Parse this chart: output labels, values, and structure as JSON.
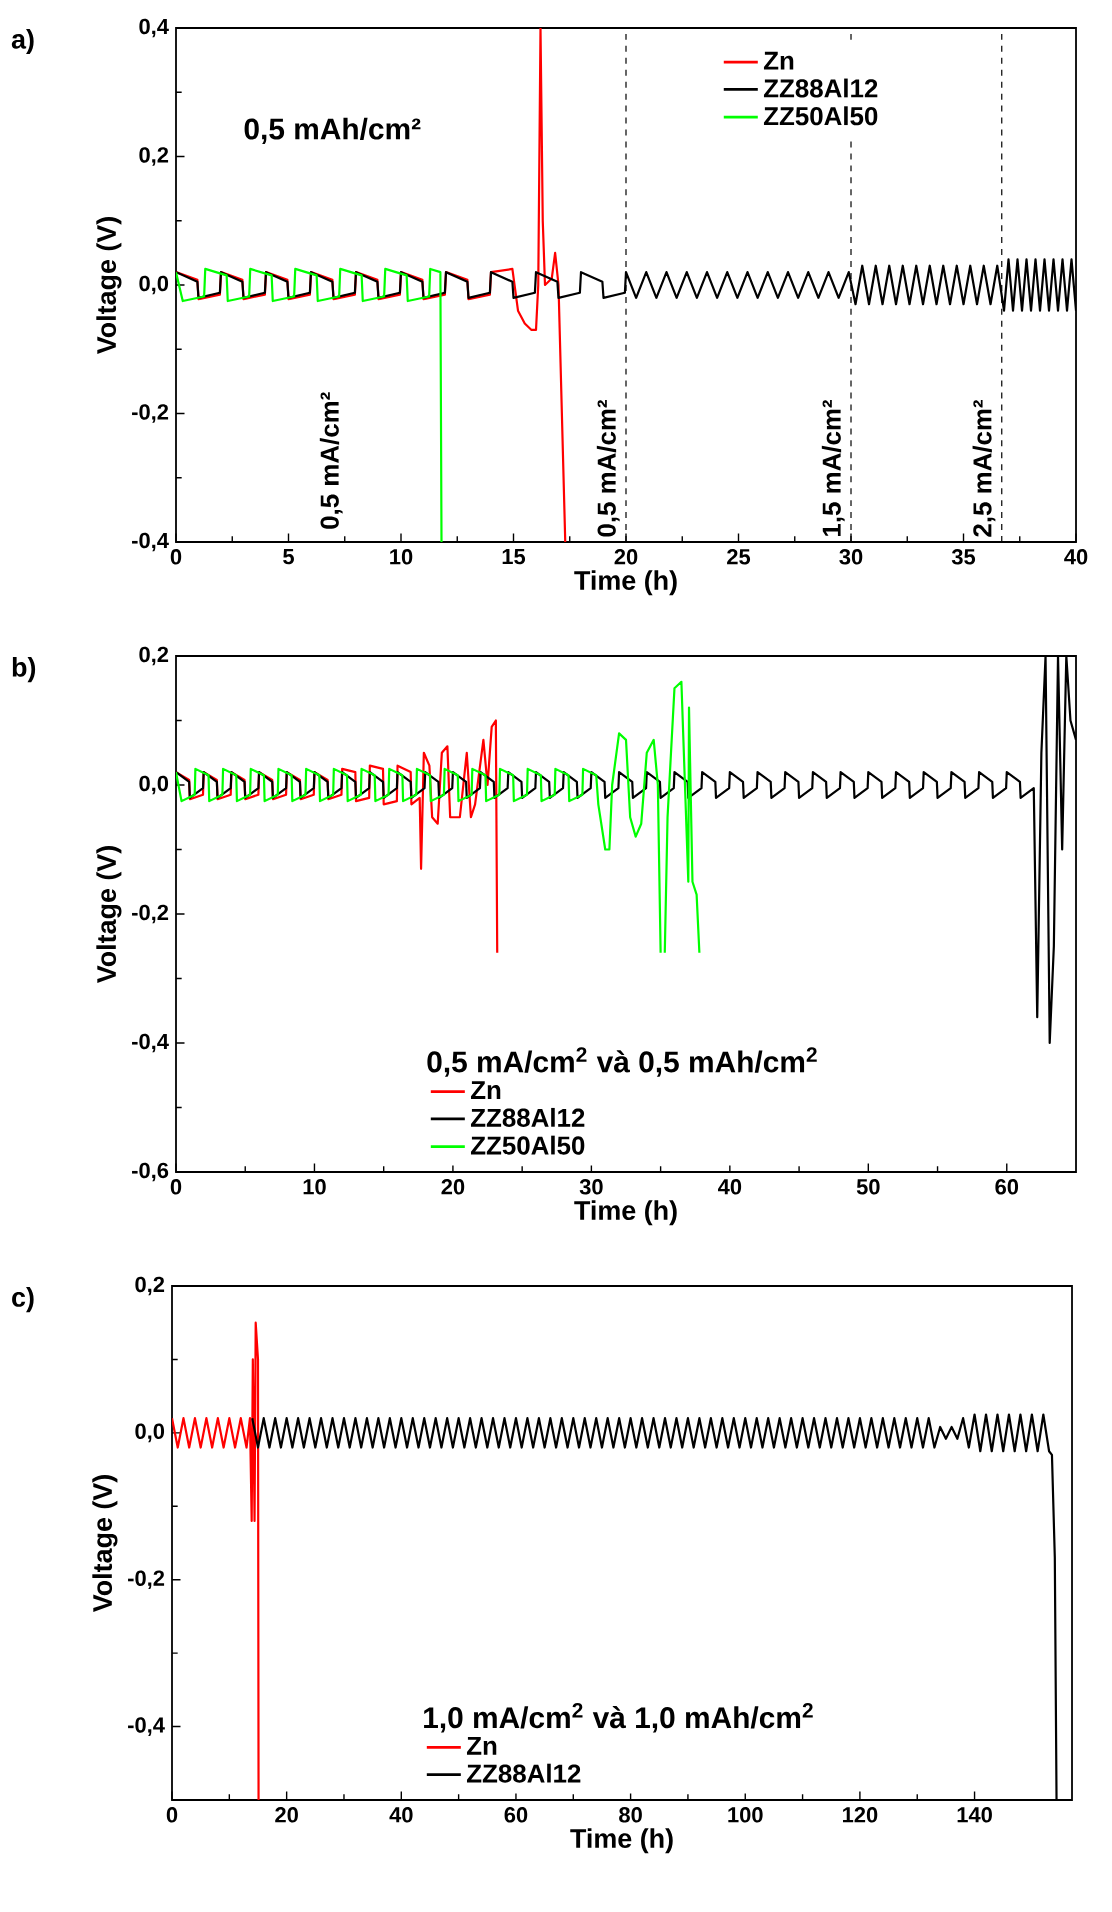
{
  "chart_data": [
    {
      "type": "line",
      "title": "a)",
      "xlabel": "Time (h)",
      "ylabel": "Voltage (V)",
      "legend": "top right",
      "xlim": [
        0,
        40
      ],
      "xticks": [
        0,
        5,
        10,
        15,
        20,
        25,
        30,
        35,
        40
      ],
      "ylim": [
        -0.4,
        0.4
      ],
      "yticks": [
        {
          "value": -0.4,
          "label": "-0,4"
        },
        {
          "value": -0.2,
          "label": "-0,2"
        },
        {
          "value": 0,
          "label": "0,0"
        },
        {
          "value": 0.2,
          "label": "0,2"
        },
        {
          "value": 0.4,
          "label": "0,4"
        }
      ],
      "annotations": [
        "0,5 mAh/cm²",
        "0,5 mA/cm²"
      ],
      "ref_lines": [
        {
          "axis": "x",
          "value": 20,
          "label": "0,5 mA/cm²",
          "line_style": "dashed"
        },
        {
          "axis": "x",
          "value": 30,
          "label": "1,5 mA/cm²",
          "line_style": "dashed"
        },
        {
          "axis": "x",
          "value": 36.7,
          "label": "2,5 mA/cm²",
          "line_style": "dashed"
        }
      ],
      "series": [
        {
          "name": "Zn",
          "color": "#ff0000",
          "x": [
            0,
            0.95,
            1,
            1.95,
            2,
            2.95,
            3,
            3.95,
            4,
            4.95,
            5,
            5.95,
            6,
            6.95,
            7,
            7.95,
            8,
            8.95,
            9,
            9.95,
            10,
            10.95,
            11,
            11.95,
            12,
            12.95,
            13,
            13.95,
            14,
            14.95,
            15.2,
            15.5,
            15.8,
            16,
            16.1,
            16.2,
            16.3,
            16.4,
            16.7,
            16.85,
            17,
            17.3
          ],
          "values": [
            0.02,
            0.008,
            -0.022,
            -0.015,
            0.02,
            0.008,
            -0.022,
            -0.015,
            0.02,
            0.008,
            -0.022,
            -0.015,
            0.02,
            0.008,
            -0.022,
            -0.015,
            0.02,
            0.008,
            -0.022,
            -0.015,
            0.02,
            0.008,
            -0.022,
            -0.015,
            0.02,
            0.008,
            -0.022,
            -0.015,
            0.02,
            0.025,
            -0.04,
            -0.06,
            -0.07,
            -0.07,
            0,
            0.4,
            0.1,
            0,
            0.01,
            0.05,
            0,
            -0.4
          ]
        },
        {
          "name": "ZZ88Al12",
          "color": "#000000",
          "x": [
            0,
            0.95,
            1,
            1.95,
            2,
            2.95,
            3,
            3.95,
            4,
            4.95,
            5,
            5.95,
            6,
            6.95,
            7,
            7.95,
            8,
            8.95,
            9,
            9.95,
            10,
            10.95,
            11,
            11.95,
            12,
            12.95,
            13,
            13.95,
            14,
            14.95,
            15,
            15.95,
            16,
            16.95,
            17,
            17.95,
            18,
            18.95,
            19,
            19.95,
            20,
            20.45,
            20.9,
            21.35,
            21.8,
            22.25,
            22.7,
            23.15,
            23.6,
            24.05,
            24.5,
            24.95,
            25.4,
            25.85,
            26.3,
            26.75,
            27.2,
            27.65,
            28.1,
            28.55,
            29,
            29.45,
            29.9,
            30.2,
            30.5,
            30.8,
            31.1,
            31.4,
            31.7,
            32,
            32.3,
            32.6,
            32.9,
            33.2,
            33.5,
            33.8,
            34.1,
            34.4,
            34.7,
            35,
            35.3,
            35.6,
            35.9,
            36.2,
            36.5,
            36.8,
            37,
            37.2,
            37.4,
            37.6,
            37.8,
            38,
            38.2,
            38.4,
            38.6,
            38.8,
            39,
            39.2,
            39.4,
            39.6,
            39.8,
            40
          ],
          "values": [
            0.02,
            0.005,
            -0.02,
            -0.012,
            0.02,
            0.005,
            -0.02,
            -0.012,
            0.02,
            0.005,
            -0.02,
            -0.012,
            0.02,
            0.005,
            -0.02,
            -0.012,
            0.02,
            0.005,
            -0.02,
            -0.012,
            0.02,
            0.005,
            -0.02,
            -0.012,
            0.02,
            0.005,
            -0.02,
            -0.012,
            0.02,
            0.005,
            -0.02,
            -0.012,
            0.02,
            0.005,
            -0.02,
            -0.012,
            0.02,
            0.005,
            -0.02,
            -0.012,
            0.02,
            -0.02,
            0.02,
            -0.02,
            0.02,
            -0.02,
            0.02,
            -0.02,
            0.02,
            -0.02,
            0.02,
            -0.02,
            0.02,
            -0.02,
            0.02,
            -0.02,
            0.02,
            -0.02,
            0.02,
            -0.02,
            0.02,
            -0.02,
            0.02,
            -0.03,
            0.03,
            -0.03,
            0.03,
            -0.03,
            0.03,
            -0.03,
            0.03,
            -0.03,
            0.03,
            -0.03,
            0.03,
            -0.03,
            0.03,
            -0.03,
            0.03,
            -0.03,
            0.03,
            -0.03,
            0.03,
            -0.03,
            0.03,
            -0.04,
            0.04,
            -0.04,
            0.04,
            -0.04,
            0.04,
            -0.04,
            0.04,
            -0.04,
            0.04,
            -0.04,
            0.04,
            -0.04,
            0.04,
            -0.04,
            0.04,
            -0.04
          ]
        },
        {
          "name": "ZZ50Al50",
          "color": "#00ff00",
          "x": [
            0,
            0.3,
            1.25,
            1.3,
            2.25,
            2.3,
            3.25,
            3.3,
            4.25,
            4.3,
            5.25,
            5.3,
            6.25,
            6.3,
            7.25,
            7.3,
            8.25,
            8.3,
            9.25,
            9.3,
            10.25,
            10.3,
            11.25,
            11.3,
            11.75,
            11.8
          ],
          "values": [
            0.02,
            -0.025,
            -0.018,
            0.025,
            0.015,
            -0.025,
            -0.018,
            0.025,
            0.015,
            -0.025,
            -0.018,
            0.025,
            0.015,
            -0.025,
            -0.018,
            0.025,
            0.015,
            -0.025,
            -0.018,
            0.025,
            0.015,
            -0.025,
            -0.018,
            0.025,
            0.02,
            -0.4
          ]
        }
      ]
    },
    {
      "type": "line",
      "title": "b)",
      "xlabel": "Time (h)",
      "ylabel": "Voltage (V)",
      "legend": "bottom",
      "legend_title": "0,5 mA/cm$^{2}$ và 0,5 mAh/cm$^{2}$",
      "xlim": [
        0,
        65
      ],
      "xticks": [
        0,
        10,
        20,
        30,
        40,
        50,
        60
      ],
      "ylim": [
        -0.6,
        0.2
      ],
      "yticks": [
        {
          "value": -0.6,
          "label": "-0,6"
        },
        {
          "value": -0.4,
          "label": "-0,4"
        },
        {
          "value": -0.2,
          "label": "-0,2"
        },
        {
          "value": 0,
          "label": "0,0"
        },
        {
          "value": 0.2,
          "label": "0,2"
        }
      ],
      "series": [
        {
          "name": "Zn",
          "color": "#ff0000",
          "x": [
            0,
            0.95,
            1,
            1.95,
            2,
            2.95,
            3,
            3.95,
            4,
            4.95,
            5,
            5.95,
            6,
            6.95,
            7,
            7.95,
            8,
            8.95,
            9,
            9.95,
            10,
            10.95,
            11,
            11.95,
            12,
            12.95,
            13,
            13.95,
            14,
            14.95,
            15,
            15.95,
            16,
            16.95,
            17,
            17.6,
            17.7,
            17.9,
            18.3,
            18.5,
            18.9,
            19.2,
            19.6,
            19.8,
            20.5,
            21,
            21.3,
            21.6,
            22.2,
            22.5,
            22.8,
            23.1,
            23.2
          ],
          "values": [
            0.02,
            0.008,
            -0.022,
            -0.015,
            0.02,
            0.008,
            -0.022,
            -0.015,
            0.02,
            0.008,
            -0.022,
            -0.015,
            0.02,
            0.008,
            -0.022,
            -0.015,
            0.02,
            0.008,
            -0.022,
            -0.015,
            0.02,
            0.008,
            -0.022,
            -0.015,
            0.025,
            0.02,
            -0.025,
            -0.02,
            0.03,
            0.025,
            -0.03,
            -0.025,
            0.03,
            0.02,
            -0.03,
            -0.02,
            -0.13,
            0.05,
            0.03,
            -0.05,
            -0.06,
            0.05,
            0.06,
            -0.05,
            -0.05,
            0.05,
            -0.05,
            -0.03,
            0.07,
            0,
            0.09,
            0.1,
            -0.26
          ]
        },
        {
          "name": "ZZ88Al12",
          "color": "#000000",
          "x": [
            0,
            0.95,
            1,
            1.95,
            2,
            2.95,
            3,
            3.95,
            4,
            4.95,
            5,
            5.95,
            6,
            6.95,
            7,
            7.95,
            8,
            8.95,
            9,
            9.95,
            10,
            10.95,
            11,
            11.95,
            12,
            12.95,
            13,
            13.95,
            14,
            14.95,
            15,
            15.95,
            16,
            16.95,
            17,
            17.95,
            18,
            18.95,
            19,
            19.95,
            20,
            20.95,
            21,
            21.95,
            22,
            22.95,
            23,
            23.95,
            24,
            24.95,
            25,
            25.95,
            26,
            26.95,
            27,
            27.95,
            28,
            28.95,
            29,
            29.95,
            30,
            30.95,
            31,
            31.95,
            32,
            32.95,
            33,
            33.95,
            34,
            34.95,
            35,
            35.95,
            36,
            36.95,
            37,
            37.95,
            38,
            38.95,
            39,
            39.95,
            40,
            40.95,
            41,
            41.95,
            42,
            42.95,
            43,
            43.95,
            44,
            44.95,
            45,
            45.95,
            46,
            46.95,
            47,
            47.95,
            48,
            48.95,
            49,
            49.95,
            50,
            50.95,
            51,
            51.95,
            52,
            52.95,
            53,
            53.95,
            54,
            54.95,
            55,
            55.95,
            56,
            56.95,
            57,
            57.95,
            58,
            58.95,
            59,
            59.95,
            60,
            60.95,
            61,
            61.95,
            62.2,
            62.5,
            62.8,
            63.1,
            63.4,
            63.7,
            64,
            64.3,
            64.6,
            65
          ],
          "values": [
            0.02,
            0.005,
            -0.02,
            -0.005,
            0.02,
            0.005,
            -0.02,
            -0.005,
            0.02,
            0.005,
            -0.02,
            -0.005,
            0.02,
            0.005,
            -0.02,
            -0.005,
            0.02,
            0.005,
            -0.02,
            -0.005,
            0.02,
            0.005,
            -0.02,
            -0.005,
            0.02,
            0.005,
            -0.02,
            -0.005,
            0.02,
            0.005,
            -0.02,
            -0.005,
            0.02,
            0.005,
            -0.02,
            -0.005,
            0.02,
            0.005,
            -0.02,
            -0.005,
            0.02,
            0.005,
            -0.02,
            -0.005,
            0.02,
            0.005,
            -0.02,
            -0.005,
            0.02,
            0.005,
            -0.02,
            -0.005,
            0.02,
            0.005,
            -0.02,
            -0.005,
            0.02,
            0.005,
            -0.02,
            -0.005,
            0.02,
            0.005,
            -0.02,
            -0.005,
            0.02,
            0.005,
            -0.02,
            -0.005,
            0.02,
            0.005,
            -0.02,
            -0.005,
            0.02,
            0.005,
            -0.02,
            -0.005,
            0.02,
            0.005,
            -0.02,
            -0.005,
            0.02,
            0.005,
            -0.02,
            -0.005,
            0.02,
            0.005,
            -0.02,
            -0.005,
            0.02,
            0.005,
            -0.02,
            -0.005,
            0.02,
            0.005,
            -0.02,
            -0.005,
            0.02,
            0.005,
            -0.02,
            -0.005,
            0.02,
            0.005,
            -0.02,
            -0.005,
            0.02,
            0.005,
            -0.02,
            -0.005,
            0.02,
            0.005,
            -0.02,
            -0.005,
            0.02,
            0.005,
            -0.02,
            -0.005,
            0.02,
            0.005,
            -0.02,
            -0.005,
            0.02,
            0.005,
            -0.02,
            -0.005,
            -0.36,
            0.05,
            0.2,
            -0.4,
            -0.25,
            0.2,
            -0.1,
            0.2,
            0.1,
            0.07
          ]
        },
        {
          "name": "ZZ50Al50",
          "color": "#00ff00",
          "x": [
            0,
            0.4,
            1.35,
            1.4,
            2.35,
            2.4,
            3.35,
            3.4,
            4.35,
            4.4,
            5.35,
            5.4,
            6.35,
            6.4,
            7.35,
            7.4,
            8.35,
            8.4,
            9.35,
            9.4,
            10.35,
            10.4,
            11.35,
            11.4,
            12.35,
            12.4,
            13.35,
            13.4,
            14.35,
            14.4,
            15.35,
            15.4,
            16.35,
            16.4,
            17.35,
            17.4,
            18.35,
            18.4,
            19.35,
            19.4,
            20.35,
            20.4,
            21.35,
            21.4,
            22.35,
            22.4,
            23.35,
            23.4,
            24.35,
            24.4,
            25.35,
            25.4,
            26.35,
            26.4,
            27.35,
            27.4,
            28.35,
            28.4,
            29.35,
            29.4,
            30.35,
            30.5,
            31,
            31.3,
            31.5,
            32,
            32.5,
            32.8,
            33.2,
            33.6,
            34,
            34.5,
            34.8,
            35,
            35.1,
            35.3,
            35.5,
            36,
            36.5,
            37,
            37.05,
            37.3,
            37.6,
            37.8
          ],
          "values": [
            0.02,
            -0.025,
            -0.015,
            0.025,
            0.015,
            -0.025,
            -0.015,
            0.025,
            0.015,
            -0.025,
            -0.015,
            0.025,
            0.015,
            -0.025,
            -0.015,
            0.025,
            0.015,
            -0.025,
            -0.015,
            0.025,
            0.015,
            -0.025,
            -0.015,
            0.025,
            0.015,
            -0.025,
            -0.015,
            0.025,
            0.015,
            -0.025,
            -0.015,
            0.025,
            0.015,
            -0.025,
            -0.015,
            0.025,
            0.015,
            -0.025,
            -0.015,
            0.025,
            0.015,
            -0.025,
            -0.015,
            0.025,
            0.015,
            -0.025,
            -0.015,
            0.025,
            0.015,
            -0.025,
            -0.015,
            0.025,
            0.015,
            -0.025,
            -0.015,
            0.025,
            0.015,
            -0.025,
            -0.015,
            0.025,
            0.015,
            -0.03,
            -0.1,
            -0.1,
            0,
            0.08,
            0.07,
            -0.05,
            -0.08,
            -0.06,
            0.05,
            0.07,
            0,
            -0.26,
            null,
            -0.26,
            -0.05,
            0.15,
            0.16,
            -0.15,
            0.12,
            -0.15,
            -0.17,
            -0.26
          ]
        }
      ]
    },
    {
      "type": "line",
      "title": "c)",
      "xlabel": "Time (h)",
      "ylabel": "Voltage (V)",
      "legend": "bottom",
      "legend_title": "1,0 mA/cm$^{2}$ và 1,0 mAh/cm$^{2}$",
      "xlim": [
        0,
        157
      ],
      "xticks": [
        0,
        20,
        40,
        60,
        80,
        100,
        120,
        140
      ],
      "ylim": [
        -0.5,
        0.2
      ],
      "yticks": [
        {
          "value": -0.4,
          "label": "-0,4"
        },
        {
          "value": -0.2,
          "label": "-0,2"
        },
        {
          "value": 0,
          "label": "0,0"
        },
        {
          "value": 0.2,
          "label": "0,2"
        }
      ],
      "series": [
        {
          "name": "Zn",
          "color": "#ff0000",
          "x": [
            0,
            1,
            2,
            3,
            4,
            5,
            6,
            7,
            8,
            9,
            10,
            11,
            12,
            13,
            13.6,
            13.9,
            14.1,
            14.4,
            14.6,
            15,
            15.1
          ],
          "values": [
            0.02,
            -0.02,
            0.02,
            -0.02,
            0.02,
            -0.02,
            0.02,
            -0.02,
            0.02,
            -0.02,
            0.02,
            -0.02,
            0.02,
            -0.02,
            0.02,
            -0.12,
            0.1,
            -0.12,
            0.15,
            0.1,
            -0.5
          ]
        },
        {
          "name": "ZZ88Al12",
          "color": "#000000",
          "x": [
            14,
            15,
            16,
            17,
            18,
            19,
            20,
            21,
            22,
            23,
            24,
            25,
            26,
            27,
            28,
            29,
            30,
            31,
            32,
            33,
            34,
            35,
            36,
            37,
            38,
            39,
            40,
            41,
            42,
            43,
            44,
            45,
            46,
            47,
            48,
            49,
            50,
            51,
            52,
            53,
            54,
            55,
            56,
            57,
            58,
            59,
            60,
            61,
            62,
            63,
            64,
            65,
            66,
            67,
            68,
            69,
            70,
            71,
            72,
            73,
            74,
            75,
            76,
            77,
            78,
            79,
            80,
            81,
            82,
            83,
            84,
            85,
            86,
            87,
            88,
            89,
            90,
            91,
            92,
            93,
            94,
            95,
            96,
            97,
            98,
            99,
            100,
            101,
            102,
            103,
            104,
            105,
            106,
            107,
            108,
            109,
            110,
            111,
            112,
            113,
            114,
            115,
            116,
            117,
            118,
            119,
            120,
            121,
            122,
            123,
            124,
            125,
            126,
            127,
            128,
            129,
            130,
            131,
            132,
            133,
            134,
            135,
            136,
            137,
            138,
            139,
            140,
            141,
            142,
            143,
            144,
            145,
            146,
            147,
            148,
            149,
            150,
            151,
            152,
            153,
            153.5,
            154,
            154.3
          ],
          "values": [
            0.02,
            -0.02,
            0.02,
            -0.02,
            0.02,
            -0.02,
            0.02,
            -0.02,
            0.02,
            -0.02,
            0.02,
            -0.02,
            0.02,
            -0.02,
            0.02,
            -0.02,
            0.02,
            -0.02,
            0.02,
            -0.02,
            0.02,
            -0.02,
            0.02,
            -0.02,
            0.02,
            -0.02,
            0.02,
            -0.02,
            0.02,
            -0.02,
            0.02,
            -0.02,
            0.02,
            -0.02,
            0.02,
            -0.02,
            0.02,
            -0.02,
            0.02,
            -0.02,
            0.02,
            -0.02,
            0.02,
            -0.02,
            0.02,
            -0.02,
            0.02,
            -0.02,
            0.02,
            -0.02,
            0.02,
            -0.02,
            0.02,
            -0.02,
            0.02,
            -0.02,
            0.02,
            -0.02,
            0.02,
            -0.02,
            0.02,
            -0.02,
            0.02,
            -0.02,
            0.02,
            -0.02,
            0.02,
            -0.02,
            0.02,
            -0.02,
            0.02,
            -0.02,
            0.02,
            -0.02,
            0.02,
            -0.02,
            0.02,
            -0.02,
            0.02,
            -0.02,
            0.02,
            -0.02,
            0.02,
            -0.02,
            0.02,
            -0.02,
            0.02,
            -0.02,
            0.02,
            -0.02,
            0.02,
            -0.02,
            0.02,
            -0.02,
            0.02,
            -0.02,
            0.02,
            -0.02,
            0.02,
            -0.02,
            0.02,
            -0.02,
            0.02,
            -0.02,
            0.02,
            -0.02,
            0.02,
            -0.02,
            0.02,
            -0.02,
            0.02,
            -0.02,
            0.02,
            -0.02,
            0.02,
            -0.02,
            0.02,
            -0.02,
            0.02,
            -0.02,
            0.008,
            -0.008,
            0.008,
            -0.008,
            0.02,
            -0.02,
            0.025,
            -0.025,
            0.025,
            -0.025,
            0.025,
            -0.025,
            0.025,
            -0.025,
            0.025,
            -0.025,
            0.025,
            -0.025,
            0.025,
            -0.025,
            -0.03,
            -0.17,
            -0.5
          ]
        }
      ]
    }
  ]
}
